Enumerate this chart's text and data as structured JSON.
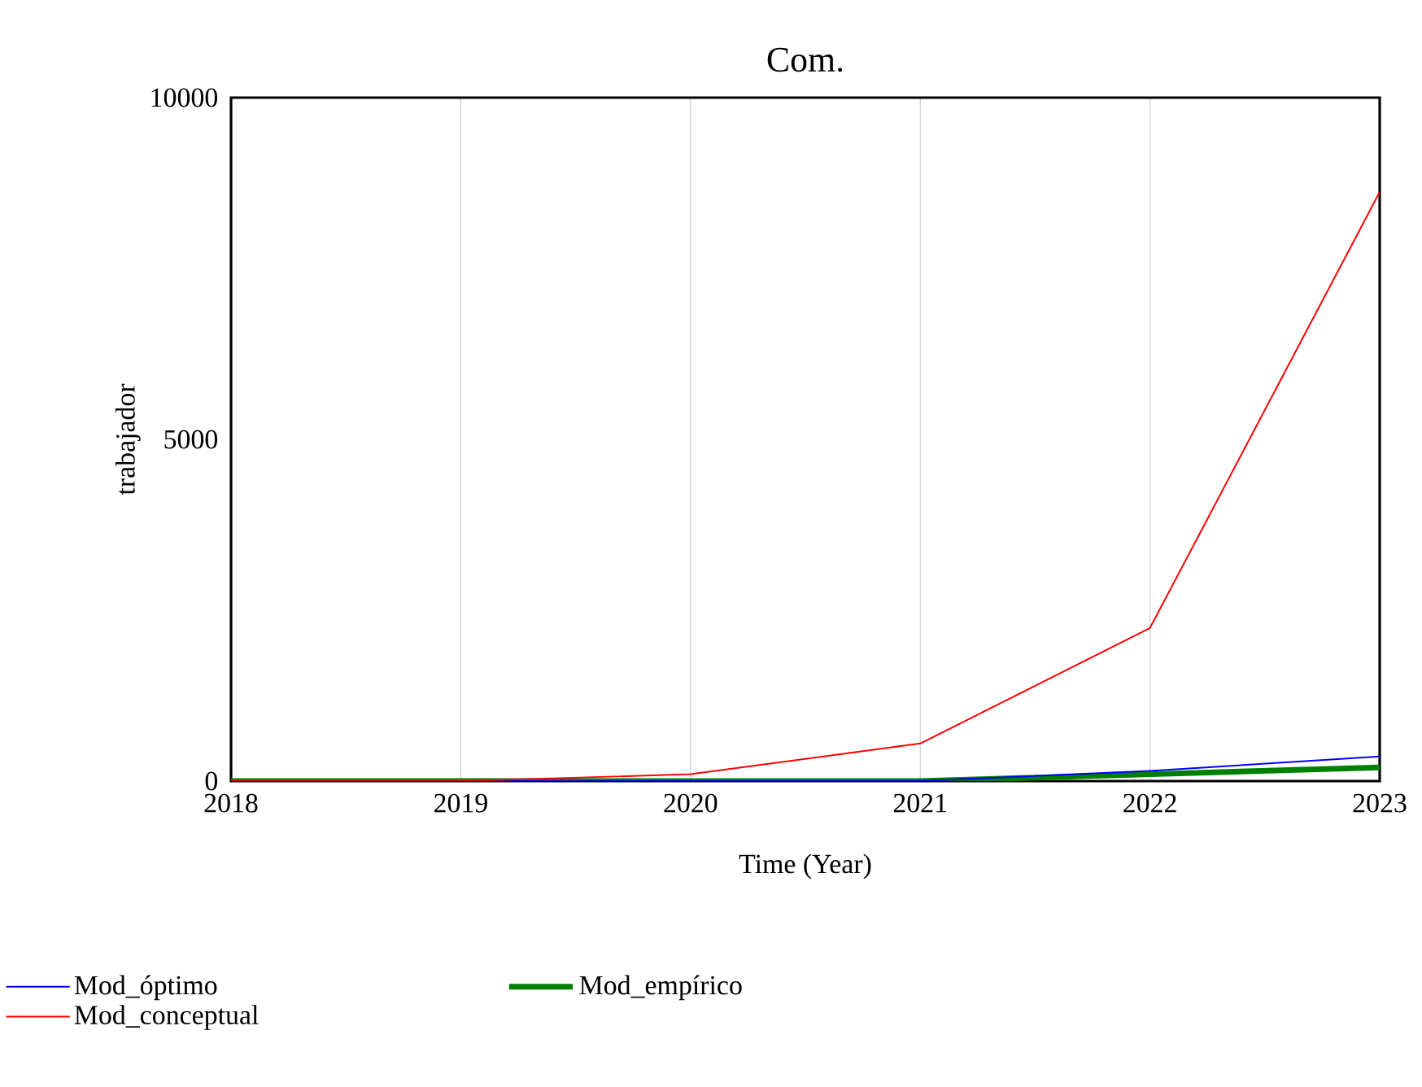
{
  "chart_data": {
    "type": "line",
    "title": "Com.",
    "xlabel": "Time (Year)",
    "ylabel": "trabajador",
    "x": [
      2018,
      2019,
      2020,
      2021,
      2022,
      2023
    ],
    "series": [
      {
        "name": "Mod_óptimo",
        "color": "#0000ff",
        "values": [
          0,
          0,
          0,
          0,
          150,
          360
        ]
      },
      {
        "name": "Mod_empírico",
        "color": "#008000",
        "values": [
          0,
          0,
          0,
          0,
          100,
          200
        ]
      },
      {
        "name": "Mod_conceptual",
        "color": "#ff0000",
        "values": [
          0,
          0,
          100,
          550,
          2240,
          8620
        ]
      }
    ],
    "xlim": [
      2018,
      2023
    ],
    "xticks": [
      2018,
      2019,
      2020,
      2021,
      2022,
      2023
    ],
    "ylim": [
      0,
      10000
    ],
    "yticks": [
      0,
      5000,
      10000
    ],
    "grid": "x",
    "legend": "bottom",
    "marker": "none",
    "line_style": "solid"
  }
}
